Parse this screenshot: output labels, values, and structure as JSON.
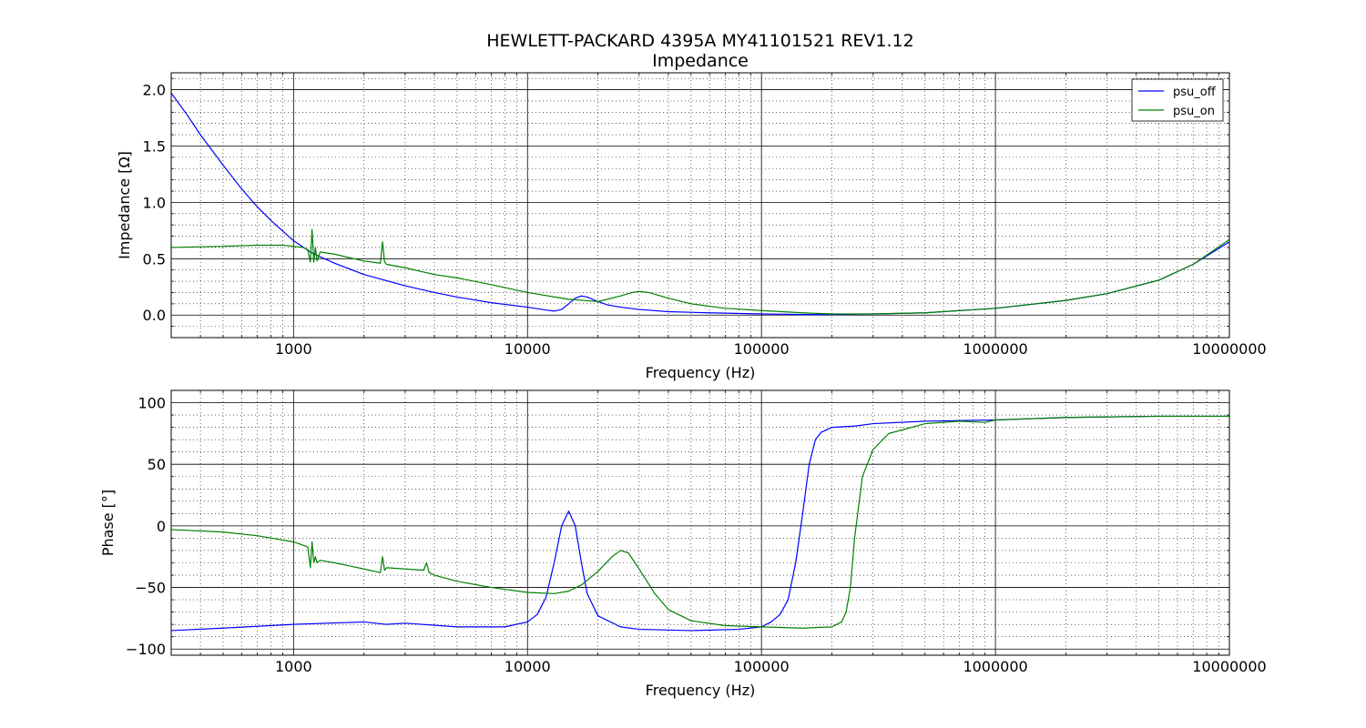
{
  "title": [
    "HEWLETT-PACKARD 4395A MY41101521 REV1.12",
    "Impedance"
  ],
  "colors": {
    "psu_off": "#0000ff",
    "psu_on": "#008000"
  },
  "chart_data": [
    {
      "type": "line",
      "x_scale": "log",
      "xlim": [
        300,
        10000000
      ],
      "ylim": [
        -0.2,
        2.15
      ],
      "xlabel": "Frequency (Hz)",
      "ylabel": "Impedance [Ω]",
      "xticks": [
        "1000",
        "10000",
        "100000",
        "1000000",
        "10000000"
      ],
      "yticks": [
        "0.0",
        "0.5",
        "1.0",
        "1.5",
        "2.0"
      ],
      "grid": true,
      "legend": "top-right",
      "series": [
        {
          "name": "psu_off",
          "color": "#0000ff",
          "x": [
            300,
            350,
            400,
            500,
            600,
            700,
            800,
            1000,
            1200,
            1500,
            2000,
            3000,
            4000,
            5000,
            7000,
            10000,
            12000,
            13000,
            14000,
            15000,
            16000,
            17000,
            18000,
            20000,
            22000,
            25000,
            30000,
            40000,
            60000,
            100000,
            150000,
            200000,
            300000,
            500000,
            1000000,
            2000000,
            3000000,
            5000000,
            7000000,
            10000000
          ],
          "y": [
            1.97,
            1.78,
            1.6,
            1.33,
            1.12,
            0.96,
            0.84,
            0.66,
            0.55,
            0.46,
            0.36,
            0.26,
            0.2,
            0.16,
            0.11,
            0.07,
            0.045,
            0.035,
            0.05,
            0.1,
            0.15,
            0.17,
            0.16,
            0.12,
            0.09,
            0.07,
            0.05,
            0.03,
            0.02,
            0.01,
            0.005,
            0.005,
            0.01,
            0.02,
            0.06,
            0.13,
            0.19,
            0.31,
            0.45,
            0.65
          ]
        },
        {
          "name": "psu_on",
          "color": "#008000",
          "x": [
            300,
            500,
            700,
            900,
            1100,
            1150,
            1180,
            1200,
            1220,
            1240,
            1260,
            1300,
            1500,
            2000,
            2350,
            2400,
            2450,
            2500,
            3000,
            4000,
            5000,
            7000,
            10000,
            15000,
            20000,
            25000,
            28000,
            30000,
            33000,
            40000,
            50000,
            70000,
            100000,
            150000,
            200000,
            300000,
            500000,
            1000000,
            2000000,
            3000000,
            5000000,
            7000000,
            10000000
          ],
          "y": [
            0.6,
            0.61,
            0.62,
            0.62,
            0.6,
            0.58,
            0.47,
            0.76,
            0.47,
            0.6,
            0.48,
            0.56,
            0.54,
            0.48,
            0.46,
            0.65,
            0.47,
            0.45,
            0.42,
            0.36,
            0.33,
            0.27,
            0.2,
            0.14,
            0.12,
            0.17,
            0.2,
            0.21,
            0.2,
            0.15,
            0.1,
            0.06,
            0.04,
            0.02,
            0.01,
            0.01,
            0.02,
            0.06,
            0.13,
            0.19,
            0.31,
            0.45,
            0.67
          ]
        }
      ]
    },
    {
      "type": "line",
      "x_scale": "log",
      "xlim": [
        300,
        10000000
      ],
      "ylim": [
        -105,
        110
      ],
      "xlabel": "Frequency (Hz)",
      "ylabel": "Phase [°]",
      "xticks": [
        "1000",
        "10000",
        "100000",
        "1000000",
        "10000000"
      ],
      "yticks": [
        "−100",
        "−50",
        "0",
        "50",
        "100"
      ],
      "grid": true,
      "series": [
        {
          "name": "psu_off",
          "color": "#0000ff",
          "x": [
            300,
            500,
            1000,
            2000,
            2500,
            3000,
            5000,
            8000,
            10000,
            11000,
            12000,
            13000,
            14000,
            15000,
            16000,
            17000,
            18000,
            20000,
            25000,
            30000,
            50000,
            80000,
            100000,
            110000,
            120000,
            130000,
            140000,
            150000,
            160000,
            170000,
            180000,
            200000,
            250000,
            300000,
            500000,
            1000000,
            2000000,
            5000000,
            10000000
          ],
          "y": [
            -85,
            -83,
            -80,
            -78,
            -80,
            -79,
            -82,
            -82,
            -78,
            -72,
            -58,
            -30,
            0,
            12,
            0,
            -30,
            -55,
            -73,
            -82,
            -84,
            -85,
            -84,
            -82,
            -78,
            -72,
            -60,
            -30,
            10,
            50,
            70,
            76,
            80,
            81,
            83,
            85,
            86,
            88,
            89,
            89
          ]
        },
        {
          "name": "psu_on",
          "color": "#008000",
          "x": [
            300,
            500,
            700,
            1000,
            1150,
            1180,
            1200,
            1220,
            1240,
            1260,
            1300,
            1500,
            2000,
            2350,
            2400,
            2450,
            2500,
            3000,
            3600,
            3700,
            3800,
            4000,
            5000,
            7000,
            10000,
            13000,
            15000,
            17000,
            20000,
            23000,
            25000,
            27000,
            30000,
            35000,
            40000,
            50000,
            70000,
            100000,
            150000,
            200000,
            220000,
            230000,
            240000,
            250000,
            270000,
            300000,
            350000,
            500000,
            700000,
            900000,
            1000000,
            2000000,
            5000000,
            10000000
          ],
          "y": [
            -3,
            -5,
            -8,
            -13,
            -17,
            -34,
            -13,
            -30,
            -25,
            -30,
            -28,
            -30,
            -35,
            -38,
            -25,
            -36,
            -34,
            -35,
            -36,
            -30,
            -38,
            -40,
            -45,
            -50,
            -54,
            -55,
            -53,
            -48,
            -37,
            -25,
            -20,
            -22,
            -35,
            -55,
            -68,
            -77,
            -81,
            -82,
            -83,
            -82,
            -78,
            -70,
            -50,
            -10,
            40,
            62,
            75,
            83,
            85,
            84,
            86,
            88,
            89,
            89
          ]
        }
      ]
    }
  ]
}
